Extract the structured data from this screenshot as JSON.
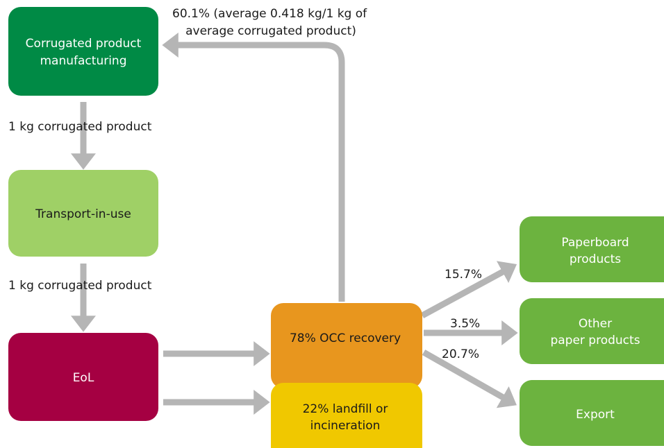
{
  "nodes": [
    {
      "label": [
        "Corrugated product",
        "manufacturing"
      ]
    },
    {
      "label": [
        "Transport-in-use"
      ]
    },
    {
      "label": [
        "EoL"
      ]
    },
    {
      "label": [
        "78% OCC recovery"
      ]
    },
    {
      "label": [
        "22% landfill or",
        "incineration"
      ]
    },
    {
      "label": [
        "Paperboard",
        "products"
      ]
    },
    {
      "label": [
        "Other",
        "paper products"
      ]
    },
    {
      "label": [
        "Export"
      ]
    }
  ],
  "edges": [
    {
      "label": [
        "60.1% (average 0.418 kg/1 kg of",
        "average corrugated product)"
      ]
    },
    {
      "label": [
        "1 kg corrugated product"
      ]
    },
    {
      "label": [
        "1 kg corrugated product"
      ]
    },
    {
      "label": [
        "15.7%"
      ]
    },
    {
      "label": [
        "3.5%"
      ]
    },
    {
      "label": [
        "20.7%"
      ]
    }
  ]
}
